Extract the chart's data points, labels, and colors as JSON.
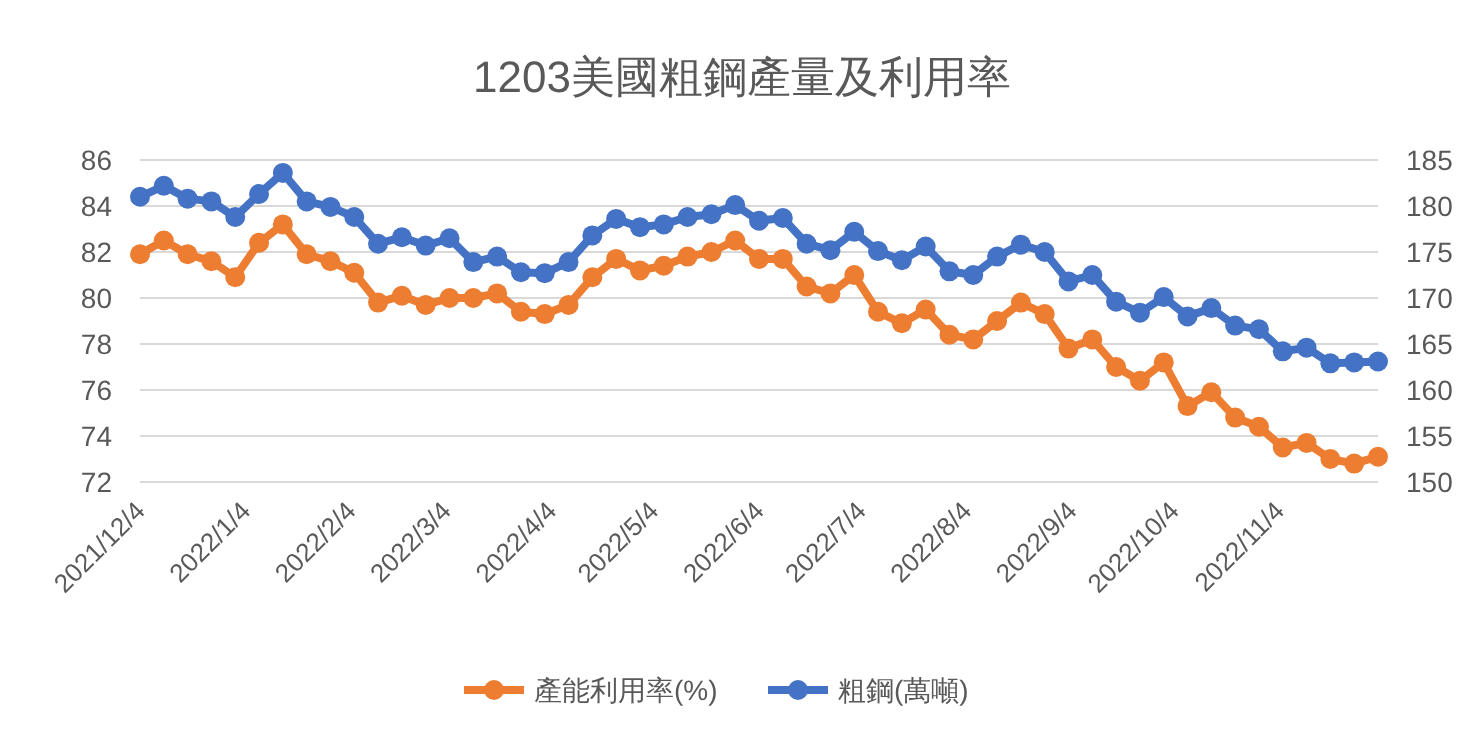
{
  "chart_data": {
    "type": "line",
    "title": "1203美國粗鋼產量及利用率",
    "x": [
      "2021-12-04",
      "2021-12-11",
      "2021-12-18",
      "2021-12-25",
      "2022-01-01",
      "2022-01-08",
      "2022-01-15",
      "2022-01-22",
      "2022-01-29",
      "2022-02-05",
      "2022-02-12",
      "2022-02-19",
      "2022-02-26",
      "2022-03-05",
      "2022-03-12",
      "2022-03-19",
      "2022-03-26",
      "2022-04-02",
      "2022-04-09",
      "2022-04-16",
      "2022-04-23",
      "2022-04-30",
      "2022-05-07",
      "2022-05-14",
      "2022-05-21",
      "2022-05-28",
      "2022-06-04",
      "2022-06-11",
      "2022-06-18",
      "2022-06-25",
      "2022-07-02",
      "2022-07-09",
      "2022-07-16",
      "2022-07-23",
      "2022-07-30",
      "2022-08-06",
      "2022-08-13",
      "2022-08-20",
      "2022-08-27",
      "2022-09-03",
      "2022-09-10",
      "2022-09-17",
      "2022-09-24",
      "2022-10-01",
      "2022-10-08",
      "2022-10-15",
      "2022-10-22",
      "2022-10-29",
      "2022-11-05",
      "2022-11-12",
      "2022-11-19",
      "2022-11-26",
      "2022-12-03"
    ],
    "series": [
      {
        "name": "產能利用率(%)",
        "color": "#ed7d31",
        "values": [
          81.9,
          82.5,
          81.9,
          81.6,
          80.9,
          82.4,
          83.2,
          81.9,
          81.6,
          81.1,
          79.8,
          80.1,
          79.7,
          80.0,
          80.0,
          80.2,
          79.4,
          79.3,
          79.7,
          80.9,
          81.7,
          81.2,
          81.4,
          81.8,
          82.0,
          82.5,
          81.7,
          81.7,
          80.5,
          80.2,
          81.0,
          79.4,
          78.9,
          79.5,
          78.4,
          78.2,
          79.0,
          79.8,
          79.3,
          77.8,
          78.2,
          77.0,
          76.4,
          77.2,
          75.3,
          75.9,
          74.8,
          74.4,
          73.5,
          73.7,
          73.0,
          72.8,
          73.1
        ]
      },
      {
        "name": "粗鋼(萬噸)",
        "color": "#4472c4",
        "axis": "y2",
        "values": [
          181.0,
          182.2,
          180.8,
          180.5,
          178.8,
          181.3,
          183.6,
          180.5,
          179.9,
          178.8,
          175.9,
          176.6,
          175.7,
          176.5,
          173.9,
          174.5,
          172.8,
          172.7,
          173.9,
          176.8,
          178.6,
          177.7,
          178.0,
          178.8,
          179.1,
          180.1,
          178.4,
          178.7,
          175.9,
          175.2,
          177.2,
          175.1,
          174.1,
          175.6,
          172.9,
          172.5,
          174.5,
          175.8,
          175.0,
          171.8,
          172.5,
          169.6,
          168.4,
          170.1,
          168.0,
          168.9,
          167.0,
          166.6,
          164.2,
          164.6,
          162.9,
          163.0,
          163.1
        ]
      }
    ],
    "xlim": [
      "2021-12-04",
      "2022-12-03"
    ],
    "xticks": [
      {
        "value": "2021-12-04",
        "label": "2021/12/4"
      },
      {
        "value": "2022-01-04",
        "label": "2022/1/4"
      },
      {
        "value": "2022-02-04",
        "label": "2022/2/4"
      },
      {
        "value": "2022-03-04",
        "label": "2022/3/4"
      },
      {
        "value": "2022-04-04",
        "label": "2022/4/4"
      },
      {
        "value": "2022-05-04",
        "label": "2022/5/4"
      },
      {
        "value": "2022-06-04",
        "label": "2022/6/4"
      },
      {
        "value": "2022-07-04",
        "label": "2022/7/4"
      },
      {
        "value": "2022-08-04",
        "label": "2022/8/4"
      },
      {
        "value": "2022-09-04",
        "label": "2022/9/4"
      },
      {
        "value": "2022-10-04",
        "label": "2022/10/4"
      },
      {
        "value": "2022-11-04",
        "label": "2022/11/4"
      }
    ],
    "ylim": [
      72,
      86
    ],
    "yticks": [
      72,
      74,
      76,
      78,
      80,
      82,
      84,
      86
    ],
    "y2lim": [
      150,
      185
    ],
    "y2ticks": [
      150,
      155,
      160,
      165,
      170,
      175,
      180,
      185
    ],
    "grid": "y",
    "legend": "bottom",
    "marker": "circle",
    "line_style": "solid"
  }
}
